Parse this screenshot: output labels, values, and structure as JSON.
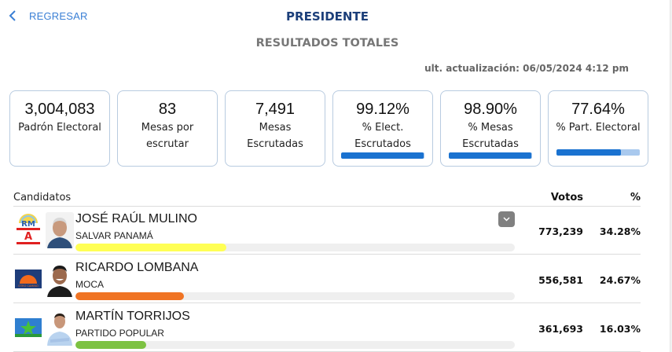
{
  "header": {
    "back_label": "REGRESAR",
    "title": "PRESIDENTE",
    "subtitle": "RESULTADOS TOTALES",
    "last_update": "ult. actualización: 06/05/2024 4:12 pm"
  },
  "stats": [
    {
      "value": "3,004,083",
      "label": "Padrón Electoral"
    },
    {
      "value": "83",
      "label": "Mesas por escrutar"
    },
    {
      "value": "7,491",
      "label": "Mesas Escrutadas"
    },
    {
      "value": "99.12%",
      "label": "% Elect. Escrutados",
      "progress": 99.12
    },
    {
      "value": "98.90%",
      "label": "% Mesas Escrutadas",
      "progress": 98.9
    },
    {
      "value": "77.64%",
      "label": "% Part. Electoral",
      "progress": 77.64
    }
  ],
  "table": {
    "headers": {
      "candidates": "Candidatos",
      "votes": "Votos",
      "percent": "%"
    },
    "rows": [
      {
        "name": "JOSÉ RAÚL MULINO",
        "party": "SALVAR PANAMÁ",
        "votes": "773,239",
        "percent": "34.28%",
        "pct_value": 34.28,
        "bar_color": "#ffff55",
        "logo": "realizando-metas-alianza-logo"
      },
      {
        "name": "RICARDO LOMBANA",
        "party": "MOCA",
        "votes": "556,581",
        "percent": "24.67%",
        "pct_value": 24.67,
        "bar_color": "#f07424",
        "logo": "otro-camino-logo"
      },
      {
        "name": "MARTÍN TORRIJOS",
        "party": "PARTIDO POPULAR",
        "votes": "361,693",
        "percent": "16.03%",
        "pct_value": 16.03,
        "bar_color": "#7dc242",
        "logo": "partido-popular-logo"
      }
    ]
  },
  "colors": {
    "accent_blue": "#1a72d0",
    "title_navy": "#1c3f7a",
    "link_blue": "#3a7fd5"
  }
}
